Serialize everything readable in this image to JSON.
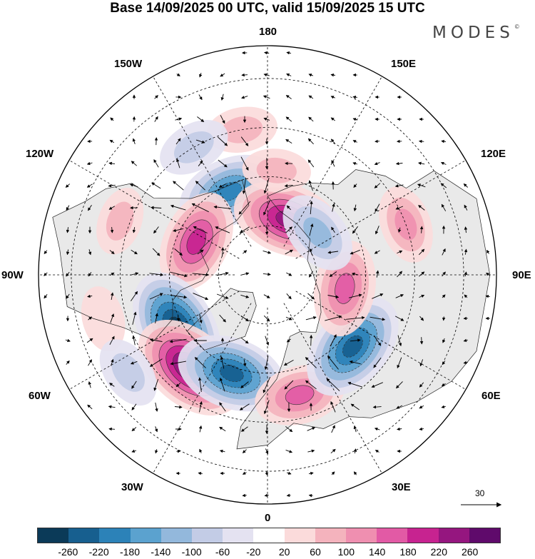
{
  "title": "Base 14/09/2025 00 UTC, valid 15/09/2025 15 UTC",
  "brand": "MODES",
  "brand_mark": "©",
  "longitude_labels": {
    "top": "180",
    "top_left": "150W",
    "top_right": "150E",
    "upper_left": "120W",
    "upper_right": "120E",
    "left": "90W",
    "right": "90E",
    "lower_left": "60W",
    "lower_right": "60E",
    "bottom_left": "30W",
    "bottom_right": "30E",
    "bottom": "0"
  },
  "reference_vector": {
    "label": "30"
  },
  "colorbar": {
    "colors": [
      "#0b3a58",
      "#175f8f",
      "#2c82b8",
      "#5ba2cf",
      "#93b8dc",
      "#c3cce6",
      "#e4e2f1",
      "#ffffff",
      "#fbdbdb",
      "#f4b3bd",
      "#ef8fb0",
      "#e25aa5",
      "#c72390",
      "#95167f",
      "#5f0a6b"
    ],
    "ticks": [
      "-260",
      "-220",
      "-180",
      "-140",
      "-100",
      "-60",
      "-20",
      "20",
      "60",
      "100",
      "140",
      "180",
      "220",
      "260"
    ]
  },
  "anomalies": [
    {
      "name": "neg-aleutian",
      "lon": -155,
      "lat": 62,
      "value": -200
    },
    {
      "name": "pos-eastsiberia",
      "lon": 160,
      "lat": 72,
      "value": 230
    },
    {
      "name": "pos-canada",
      "lon": -115,
      "lat": 66,
      "value": 200
    },
    {
      "name": "neg-labrador",
      "lon": -60,
      "lat": 58,
      "value": -260
    },
    {
      "name": "pos-atlantic",
      "lon": -40,
      "lat": 53,
      "value": 260
    },
    {
      "name": "neg-iceland",
      "lon": -20,
      "lat": 58,
      "value": -230
    },
    {
      "name": "pos-europe",
      "lon": 15,
      "lat": 52,
      "value": 150
    },
    {
      "name": "neg-westsiberia",
      "lon": 50,
      "lat": 56,
      "value": -240
    },
    {
      "name": "pos-northrussia",
      "lon": 80,
      "lat": 66,
      "value": 170
    },
    {
      "name": "neg-yakutia",
      "lon": 130,
      "lat": 70,
      "value": -130
    },
    {
      "name": "pos-chukotka",
      "lon": 175,
      "lat": 58,
      "value": 60
    },
    {
      "name": "pos-northpacific",
      "lon": -170,
      "lat": 45,
      "value": 70
    },
    {
      "name": "pos-eurasia",
      "lon": 110,
      "lat": 45,
      "value": 100
    },
    {
      "name": "neg-alaska",
      "lon": -150,
      "lat": 45,
      "value": -80
    },
    {
      "name": "pos-westerncanada",
      "lon": -110,
      "lat": 42,
      "value": 60
    },
    {
      "name": "pos-easternus",
      "lon": -75,
      "lat": 38,
      "value": 50
    },
    {
      "name": "neg-westatlantic",
      "lon": -55,
      "lat": 38,
      "value": -80
    }
  ]
}
